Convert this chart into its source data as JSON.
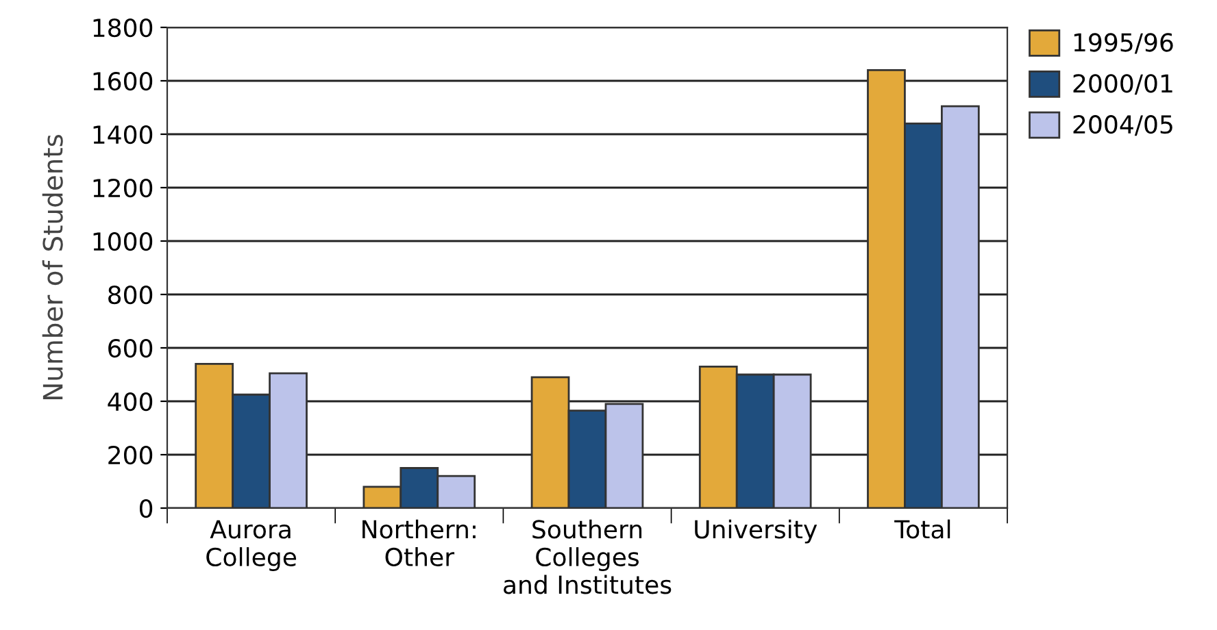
{
  "chart_data": {
    "type": "bar",
    "ylabel": "Number of Students",
    "categories": [
      "Aurora\nCollege",
      "Northern:\nOther",
      "Southern\nColleges\nand Institutes",
      "University",
      "Total"
    ],
    "series": [
      {
        "name": "1995/96",
        "color": "#e3a93a",
        "values": [
          540,
          80,
          490,
          530,
          1640
        ]
      },
      {
        "name": "2000/01",
        "color": "#1f4e7e",
        "values": [
          425,
          150,
          365,
          500,
          1440
        ]
      },
      {
        "name": "2004/05",
        "color": "#bcc3ea",
        "values": [
          505,
          120,
          390,
          500,
          1505
        ]
      }
    ],
    "ylim": [
      0,
      1800
    ],
    "yticks": [
      0,
      200,
      400,
      600,
      800,
      1000,
      1200,
      1400,
      1600,
      1800
    ],
    "grid": "y",
    "legend": "top right"
  }
}
